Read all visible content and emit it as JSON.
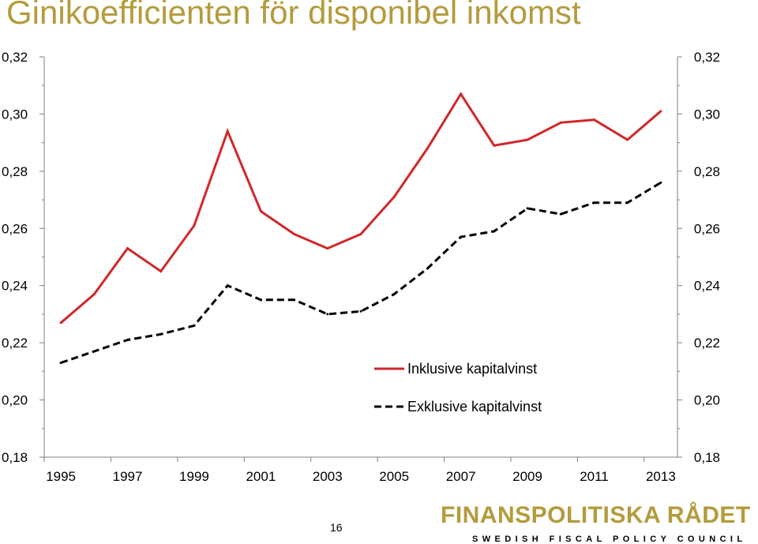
{
  "title": "Ginikoefficienten för disponibel inkomst",
  "page_number": "16",
  "logo": {
    "name": "FINANSPOLITISKA RÅDET",
    "tagline": "SWEDISH FISCAL POLICY COUNCIL"
  },
  "colors": {
    "title": "#b49b3c",
    "series_incl": "#d0282a",
    "series_excl": "#000000",
    "axis": "#808080"
  },
  "chart_data": {
    "type": "line",
    "title": "Ginikoefficienten för disponibel inkomst",
    "xlabel": "",
    "ylabel": "",
    "x": [
      1995,
      1996,
      1997,
      1998,
      1999,
      2000,
      2001,
      2002,
      2003,
      2004,
      2005,
      2006,
      2007,
      2008,
      2009,
      2010,
      2011,
      2012,
      2013
    ],
    "x_tick_labels": [
      "1995",
      "1997",
      "1999",
      "2001",
      "2003",
      "2005",
      "2007",
      "2009",
      "2011",
      "2013"
    ],
    "y_tick_labels": [
      "0,18",
      "0,20",
      "0,22",
      "0,24",
      "0,26",
      "0,28",
      "0,30",
      "0,32"
    ],
    "ylim": [
      0.18,
      0.32
    ],
    "y_ticks": [
      0.18,
      0.2,
      0.22,
      0.24,
      0.26,
      0.28,
      0.3,
      0.32
    ],
    "secondary_y_axis": true,
    "grid": false,
    "legend_position": "bottom-center",
    "series": [
      {
        "name": "Inklusive kapitalvinst",
        "style": "solid",
        "color": "#d0282a",
        "values": [
          0.227,
          0.237,
          0.253,
          0.245,
          0.261,
          0.294,
          0.266,
          0.258,
          0.253,
          0.258,
          0.271,
          0.288,
          0.307,
          0.289,
          0.291,
          0.297,
          0.298,
          0.291,
          0.301
        ]
      },
      {
        "name": "Exklusive kapitalvinst",
        "style": "dashed",
        "color": "#000000",
        "values": [
          0.213,
          0.217,
          0.221,
          0.223,
          0.226,
          0.24,
          0.235,
          0.235,
          0.23,
          0.231,
          0.237,
          0.246,
          0.257,
          0.259,
          0.267,
          0.265,
          0.269,
          0.269,
          0.276
        ]
      }
    ]
  }
}
